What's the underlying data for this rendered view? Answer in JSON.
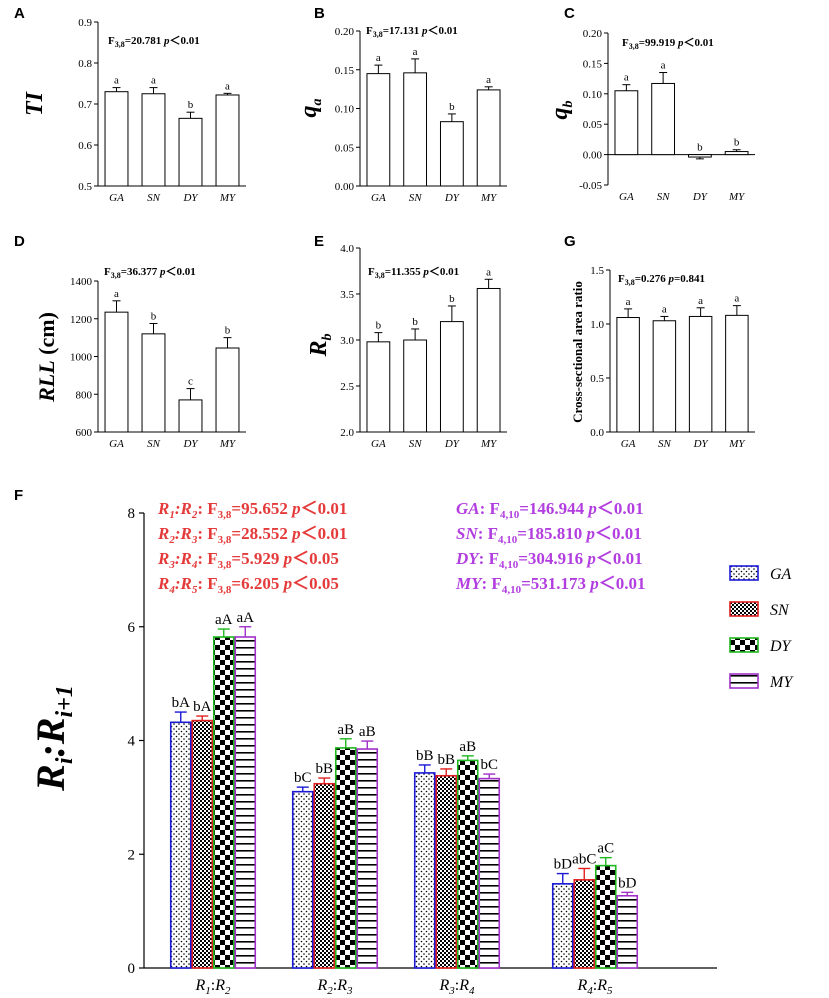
{
  "chart_data": [
    {
      "id": "A",
      "type": "bar",
      "panel_label": "A",
      "ylabel": "TI",
      "ylabel_sub": "",
      "categories": [
        "GA",
        "SN",
        "DY",
        "MY"
      ],
      "values": [
        0.73,
        0.725,
        0.665,
        0.722
      ],
      "errors": [
        0.01,
        0.015,
        0.015,
        0.004
      ],
      "letters": [
        "a",
        "a",
        "b",
        "a"
      ],
      "ylim": [
        0.5,
        0.9
      ],
      "yticks": [
        "0.5",
        "0.6",
        "0.7",
        "0.8",
        "0.9"
      ],
      "stat_f": "F",
      "stat_sub": "3,8",
      "stat_value": "=20.781",
      "stat_p": "p",
      "stat_p_tail": "＜0.01"
    },
    {
      "id": "B",
      "type": "bar",
      "panel_label": "B",
      "ylabel": "q",
      "ylabel_sub": "a",
      "categories": [
        "GA",
        "SN",
        "DY",
        "MY"
      ],
      "values": [
        0.145,
        0.146,
        0.083,
        0.124
      ],
      "errors": [
        0.011,
        0.018,
        0.01,
        0.004
      ],
      "letters": [
        "a",
        "a",
        "b",
        "a"
      ],
      "ylim": [
        0.0,
        0.2
      ],
      "yticks": [
        "0.00",
        "0.05",
        "0.10",
        "0.15",
        "0.20"
      ],
      "stat_f": "F",
      "stat_sub": "3,8",
      "stat_value": "=17.131",
      "stat_p": "p",
      "stat_p_tail": "＜0.01"
    },
    {
      "id": "C",
      "type": "bar",
      "panel_label": "C",
      "ylabel": "q",
      "ylabel_sub": "b",
      "categories": [
        "GA",
        "SN",
        "DY",
        "MY"
      ],
      "values": [
        0.105,
        0.117,
        -0.004,
        0.005
      ],
      "errors": [
        0.01,
        0.018,
        0.003,
        0.003
      ],
      "letters": [
        "a",
        "a",
        "b",
        "b"
      ],
      "ylim": [
        -0.05,
        0.2
      ],
      "yticks": [
        "-0.05",
        "0.00",
        "0.05",
        "0.10",
        "0.15",
        "0.20"
      ],
      "stat_f": "F",
      "stat_sub": "3,8",
      "stat_value": "=99.919",
      "stat_p": "p",
      "stat_p_tail": "＜0.01"
    },
    {
      "id": "D",
      "type": "bar",
      "panel_label": "D",
      "ylabel": "RLL",
      "ylabel_tail": " (cm)",
      "categories": [
        "GA",
        "SN",
        "DY",
        "MY"
      ],
      "values": [
        1235,
        1120,
        770,
        1045
      ],
      "errors": [
        60,
        55,
        60,
        55
      ],
      "letters": [
        "a",
        "b",
        "c",
        "b"
      ],
      "ylim": [
        600,
        1400
      ],
      "yticks": [
        "600",
        "800",
        "1000",
        "1200",
        "1400"
      ],
      "stat_f": "F",
      "stat_sub": "3,8",
      "stat_value": "=36.377",
      "stat_p": "p",
      "stat_p_tail": "＜0.01"
    },
    {
      "id": "E",
      "type": "bar",
      "panel_label": "E",
      "ylabel": "R",
      "ylabel_sub": "b",
      "categories": [
        "GA",
        "SN",
        "DY",
        "MY"
      ],
      "values": [
        2.98,
        3.0,
        3.2,
        3.56
      ],
      "errors": [
        0.1,
        0.12,
        0.17,
        0.1
      ],
      "letters": [
        "b",
        "b",
        "b",
        "a"
      ],
      "ylim": [
        2.0,
        4.0
      ],
      "yticks": [
        "2.0",
        "2.5",
        "3.0",
        "3.5",
        "4.0"
      ],
      "stat_f": "F",
      "stat_sub": "3,8",
      "stat_value": "=11.355",
      "stat_p": "p",
      "stat_p_tail": "＜0.01"
    },
    {
      "id": "G",
      "type": "bar",
      "panel_label": "G",
      "ylabel": "Cross-sectional area ratio",
      "ylabel_sub": "",
      "categories": [
        "GA",
        "SN",
        "DY",
        "MY"
      ],
      "values": [
        1.06,
        1.03,
        1.07,
        1.08
      ],
      "errors": [
        0.08,
        0.04,
        0.08,
        0.09
      ],
      "letters": [
        "a",
        "a",
        "a",
        "a"
      ],
      "ylim": [
        0.0,
        1.5
      ],
      "yticks": [
        "0.0",
        "0.5",
        "1.0",
        "1.5"
      ],
      "stat_f": "F",
      "stat_sub": "3,8",
      "stat_value": "=0.276",
      "stat_p": "p",
      "stat_p_tail": "=0.841"
    },
    {
      "id": "F",
      "type": "bar",
      "panel_label": "F",
      "ylabel": "R",
      "ylabel_sub1": "i",
      "ylabel_mid": ":R",
      "ylabel_sub2": "i+1",
      "categories": [
        {
          "a": "R",
          "as": "1",
          "b": "R",
          "bs": "2"
        },
        {
          "a": "R",
          "as": "2",
          "b": "R",
          "bs": "3"
        },
        {
          "a": "R",
          "as": "3",
          "b": "R",
          "bs": "4"
        },
        {
          "a": "R",
          "as": "4",
          "b": "R",
          "bs": "5"
        }
      ],
      "ylim": [
        0,
        8
      ],
      "yticks": [
        "0",
        "2",
        "4",
        "6",
        "8"
      ],
      "series": [
        {
          "name": "GA",
          "color": "#1a1ad6",
          "pattern": "dots",
          "values": [
            4.32,
            3.1,
            3.43,
            1.48
          ],
          "errors": [
            0.18,
            0.08,
            0.14,
            0.18
          ],
          "letters": [
            "bA",
            "bC",
            "bB",
            "bD"
          ]
        },
        {
          "name": "SN",
          "color": "#e02020",
          "pattern": "checker",
          "values": [
            4.35,
            3.24,
            3.38,
            1.55
          ],
          "errors": [
            0.08,
            0.1,
            0.12,
            0.2
          ],
          "letters": [
            "bA",
            "bB",
            "bB",
            "abC"
          ]
        },
        {
          "name": "DY",
          "color": "#1fb81f",
          "pattern": "bigchecker",
          "values": [
            5.82,
            3.87,
            3.65,
            1.8
          ],
          "errors": [
            0.14,
            0.16,
            0.08,
            0.14
          ],
          "letters": [
            "aA",
            "aB",
            "aB",
            "aC"
          ]
        },
        {
          "name": "MY",
          "color": "#a030c8",
          "pattern": "hlines",
          "values": [
            5.82,
            3.85,
            3.33,
            1.27
          ],
          "errors": [
            0.18,
            0.14,
            0.08,
            0.06
          ],
          "letters": [
            "aA",
            "aB",
            "bC",
            "bD"
          ]
        }
      ],
      "annotations_left": [
        {
          "a": "R",
          "as": "1",
          "b": "R",
          "bs": "2",
          "f": "F",
          "fs": "3,8",
          "fv": "=95.652",
          "p": "p",
          "pt": "＜0.01"
        },
        {
          "a": "R",
          "as": "2",
          "b": "R",
          "bs": "3",
          "f": "F",
          "fs": "3,8",
          "fv": "=28.552",
          "p": "p",
          "pt": "＜0.01"
        },
        {
          "a": "R",
          "as": "3",
          "b": "R",
          "bs": "4",
          "f": "F",
          "fs": "3,8",
          "fv": "=5.929",
          "p": "p",
          "pt": "＜0.05"
        },
        {
          "a": "R",
          "as": "4",
          "b": "R",
          "bs": "5",
          "f": "F",
          "fs": "3,8",
          "fv": "=6.205",
          "p": "p",
          "pt": "＜0.05"
        }
      ],
      "annotations_right": [
        {
          "g": "GA",
          "f": "F",
          "fs": "4,10",
          "fv": "=146.944",
          "p": "p",
          "pt": "＜0.01"
        },
        {
          "g": "SN",
          "f": "F",
          "fs": "4,10",
          "fv": "=185.810",
          "p": "p",
          "pt": "＜0.01"
        },
        {
          "g": "DY",
          "f": "F",
          "fs": "4,10",
          "fv": "=304.916",
          "p": "p",
          "pt": "＜0.01"
        },
        {
          "g": "MY",
          "f": "F",
          "fs": "4,10",
          "fv": "=531.173",
          "p": "p",
          "pt": "＜0.01"
        }
      ],
      "annotation_colors": {
        "left": "#e53a3a",
        "right": "#b23ee0"
      }
    }
  ]
}
